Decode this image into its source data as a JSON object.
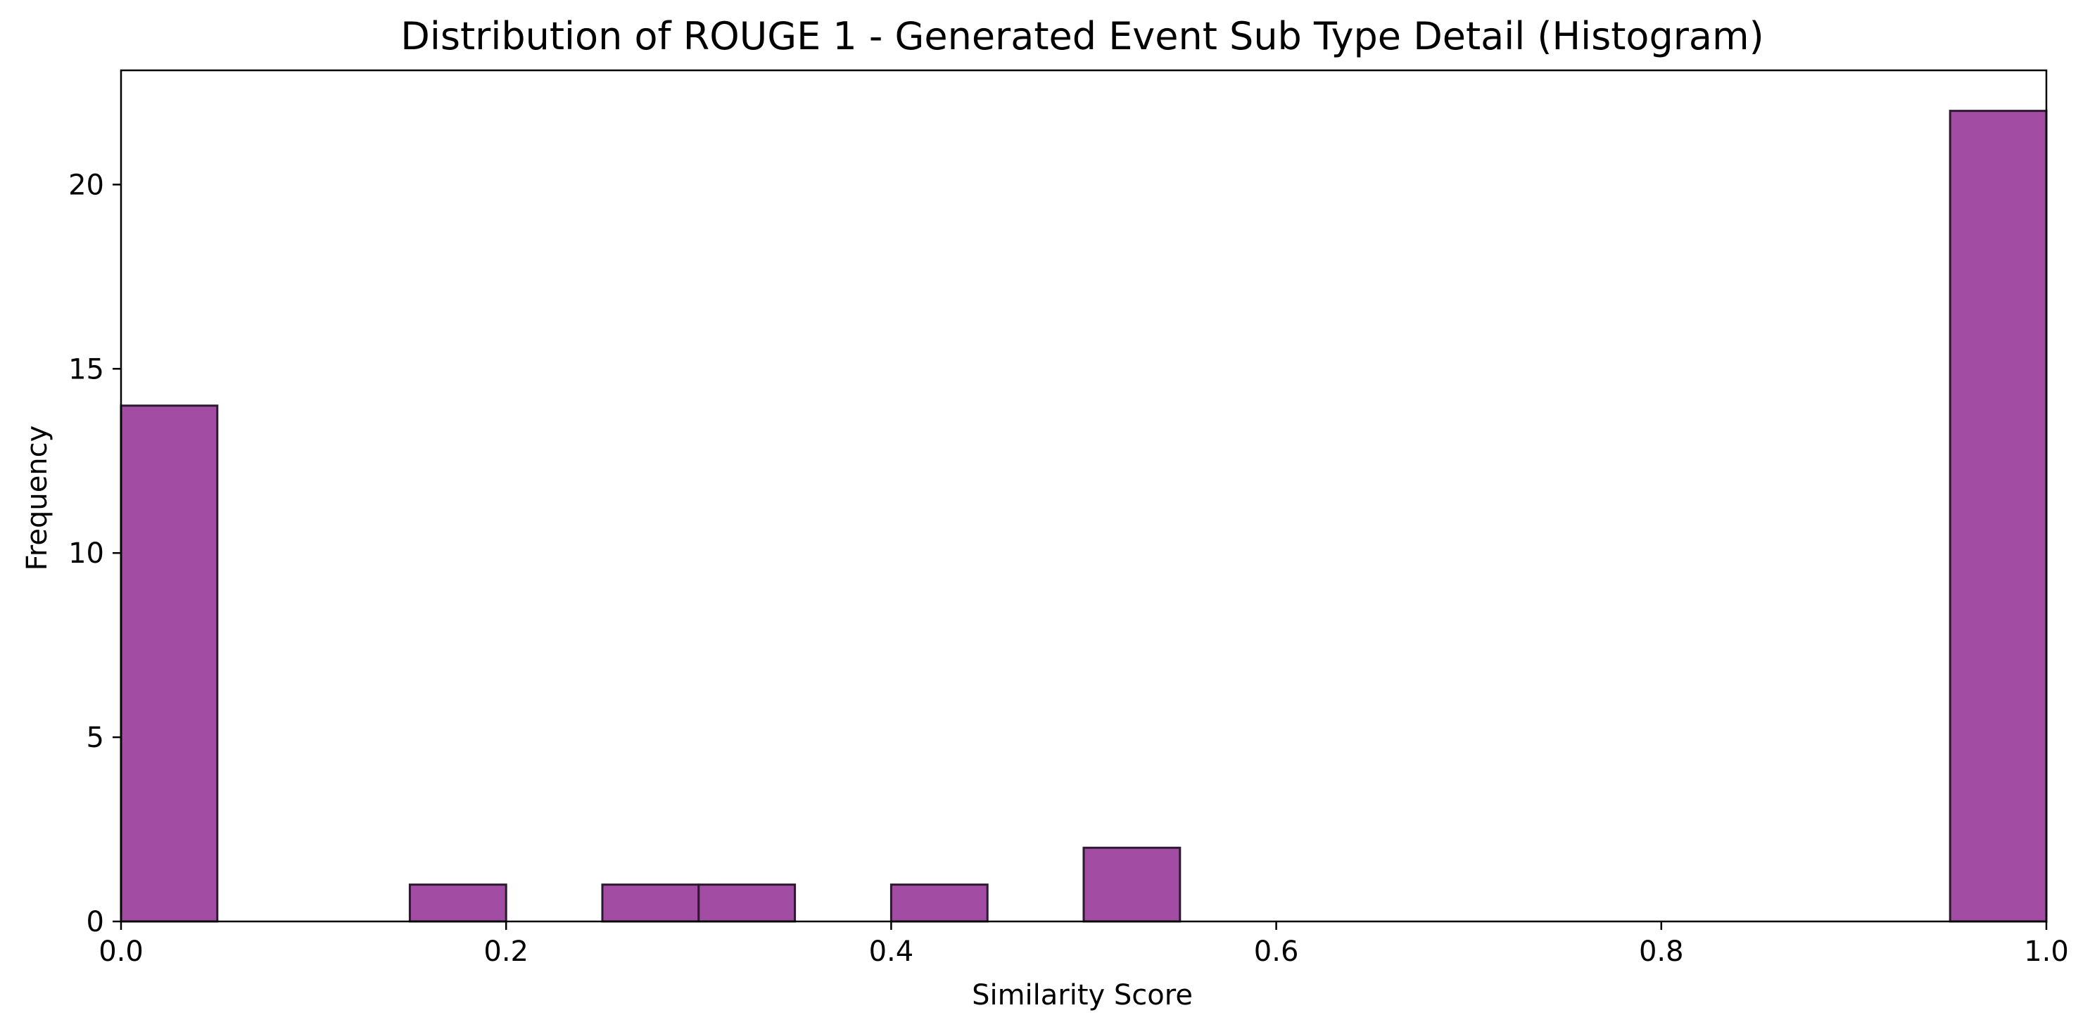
{
  "chart_data": {
    "type": "bar",
    "title": "Distribution of ROUGE 1 - Generated Event Sub Type Detail (Histogram)",
    "xlabel": "Similarity Score",
    "ylabel": "Frequency",
    "xlim": [
      0.0,
      1.0
    ],
    "ylim": [
      0,
      23.1
    ],
    "bin_width": 0.05,
    "xticks": [
      0.0,
      0.2,
      0.4,
      0.6,
      0.8,
      1.0
    ],
    "xtick_labels": [
      "0.0",
      "0.2",
      "0.4",
      "0.6",
      "0.8",
      "1.0"
    ],
    "yticks": [
      0,
      5,
      10,
      15,
      20
    ],
    "ytick_labels": [
      "0",
      "5",
      "10",
      "15",
      "20"
    ],
    "bins": [
      {
        "start": 0.0,
        "end": 0.05,
        "count": 14
      },
      {
        "start": 0.15,
        "end": 0.2,
        "count": 1
      },
      {
        "start": 0.25,
        "end": 0.3,
        "count": 1
      },
      {
        "start": 0.3,
        "end": 0.35,
        "count": 1
      },
      {
        "start": 0.4,
        "end": 0.45,
        "count": 1
      },
      {
        "start": 0.5,
        "end": 0.55,
        "count": 2
      },
      {
        "start": 0.95,
        "end": 1.0,
        "count": 22
      }
    ],
    "bar_color": "#a24ca3",
    "edge_color": "#2e1a30",
    "grid": false,
    "legend": "none"
  }
}
